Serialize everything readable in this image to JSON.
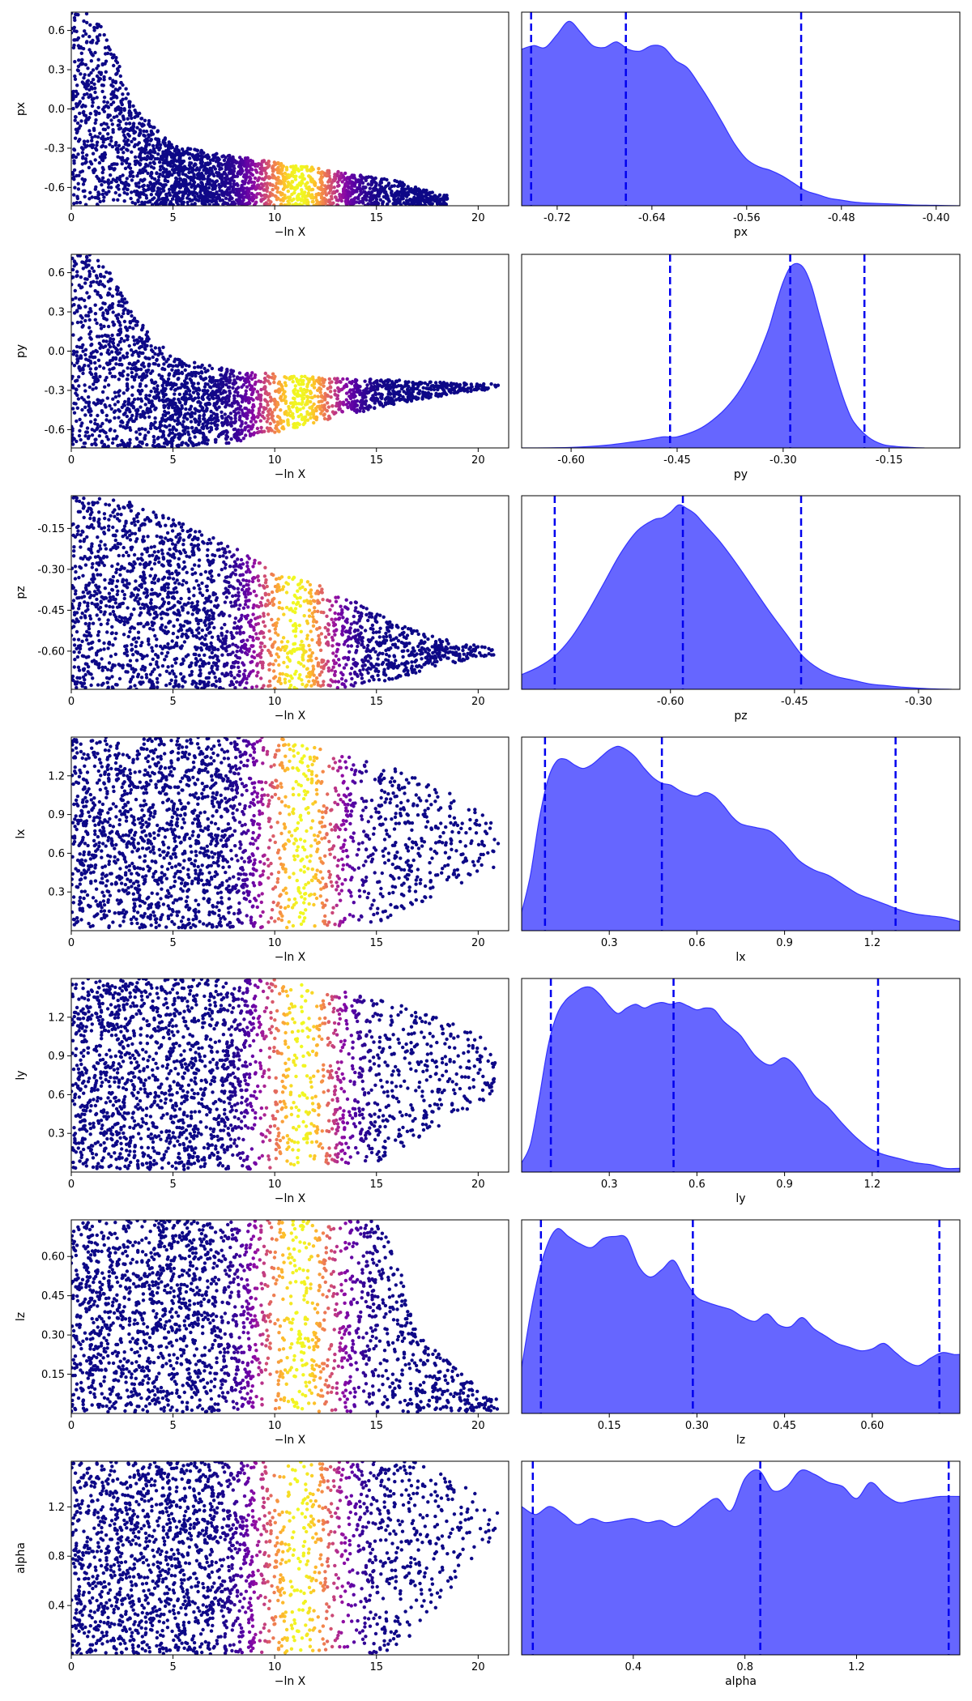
{
  "figure": {
    "xlabel_left": "−ln X",
    "colors": {
      "kde_fill": "#6666ff",
      "kde_line": "#3333ff",
      "quantile_line": "#0000ee",
      "scatter_low": "#0d0887",
      "scatter_peak": "#f0f921"
    }
  },
  "chart_data": [
    {
      "type": "scatter",
      "param": "px",
      "ylabel": "px",
      "xlabel": "−ln X",
      "xlim": [
        0,
        21.5
      ],
      "ylim": [
        -0.74,
        0.74
      ],
      "xticks": [
        "0",
        "5",
        "10",
        "15",
        "20"
      ],
      "yticks": [
        "-0.6",
        "-0.3",
        "0.0",
        "0.3",
        "0.6"
      ],
      "yticks_values": [
        -0.6,
        -0.3,
        0.0,
        0.3,
        0.6
      ],
      "spread_x": [
        0,
        1,
        2,
        3,
        5,
        8,
        12,
        16,
        18
      ],
      "upper": [
        0.74,
        0.74,
        0.5,
        0.05,
        -0.28,
        -0.36,
        -0.45,
        -0.55,
        -0.65
      ],
      "lower": [
        -0.74,
        -0.74,
        -0.74,
        -0.74,
        -0.74,
        -0.74,
        -0.74,
        -0.74,
        -0.74
      ],
      "xmax": 18.5,
      "peak_x": 11.2,
      "peak_sigma": 1.4,
      "density": 1.0
    },
    {
      "type": "area",
      "param": "px",
      "xlabel": "px",
      "xlim": [
        -0.75,
        -0.38
      ],
      "xticks": [
        "-0.72",
        "-0.64",
        "-0.56",
        "-0.48",
        "-0.40"
      ],
      "xticks_values": [
        -0.72,
        -0.64,
        -0.56,
        -0.48,
        -0.4
      ],
      "x": [
        -0.75,
        -0.74,
        -0.73,
        -0.72,
        -0.71,
        -0.7,
        -0.69,
        -0.68,
        -0.67,
        -0.66,
        -0.65,
        -0.64,
        -0.63,
        -0.62,
        -0.61,
        -0.6,
        -0.59,
        -0.58,
        -0.57,
        -0.56,
        -0.55,
        -0.54,
        -0.53,
        -0.52,
        -0.51,
        -0.5,
        -0.49,
        -0.48,
        -0.47,
        -0.46,
        -0.44,
        -0.42,
        -0.4,
        -0.38
      ],
      "y": [
        0.84,
        0.86,
        0.85,
        0.92,
        0.99,
        0.93,
        0.86,
        0.85,
        0.88,
        0.84,
        0.83,
        0.86,
        0.85,
        0.78,
        0.74,
        0.65,
        0.55,
        0.44,
        0.33,
        0.25,
        0.21,
        0.19,
        0.16,
        0.12,
        0.08,
        0.06,
        0.04,
        0.03,
        0.02,
        0.015,
        0.01,
        0.004,
        0.002,
        0.0
      ],
      "quantiles": [
        -0.742,
        -0.662,
        -0.514
      ]
    },
    {
      "type": "scatter",
      "param": "py",
      "ylabel": "py",
      "xlabel": "−ln X",
      "xlim": [
        0,
        21.5
      ],
      "ylim": [
        -0.74,
        0.74
      ],
      "xticks": [
        "0",
        "5",
        "10",
        "15",
        "20"
      ],
      "yticks": [
        "-0.6",
        "-0.3",
        "0.0",
        "0.3",
        "0.6"
      ],
      "yticks_values": [
        -0.6,
        -0.3,
        0.0,
        0.3,
        0.6
      ],
      "spread_x": [
        0,
        1,
        2,
        3,
        5,
        8,
        12,
        16,
        20
      ],
      "upper": [
        0.74,
        0.74,
        0.6,
        0.3,
        -0.05,
        -0.15,
        -0.2,
        -0.22,
        -0.25
      ],
      "lower": [
        -0.74,
        -0.74,
        -0.74,
        -0.74,
        -0.74,
        -0.7,
        -0.55,
        -0.4,
        -0.3
      ],
      "xmax": 21.0,
      "peak_x": 11.2,
      "peak_sigma": 1.4,
      "density": 1.0
    },
    {
      "type": "area",
      "param": "py",
      "xlabel": "py",
      "xlim": [
        -0.67,
        -0.05
      ],
      "xticks": [
        "-0.60",
        "-0.45",
        "-0.30",
        "-0.15"
      ],
      "xticks_values": [
        -0.6,
        -0.45,
        -0.3,
        -0.15
      ],
      "x": [
        -0.67,
        -0.6,
        -0.55,
        -0.5,
        -0.47,
        -0.45,
        -0.42,
        -0.4,
        -0.38,
        -0.36,
        -0.34,
        -0.33,
        -0.32,
        -0.31,
        -0.3,
        -0.29,
        -0.28,
        -0.27,
        -0.26,
        -0.25,
        -0.24,
        -0.23,
        -0.22,
        -0.21,
        -0.2,
        -0.18,
        -0.16,
        -0.14,
        -0.12,
        -0.1
      ],
      "y": [
        0.0,
        0.003,
        0.015,
        0.04,
        0.06,
        0.06,
        0.1,
        0.15,
        0.22,
        0.32,
        0.46,
        0.55,
        0.65,
        0.78,
        0.9,
        0.98,
        1.0,
        0.97,
        0.88,
        0.74,
        0.6,
        0.46,
        0.33,
        0.22,
        0.14,
        0.06,
        0.02,
        0.008,
        0.003,
        0.0
      ],
      "quantiles": [
        -0.46,
        -0.29,
        -0.185
      ]
    },
    {
      "type": "scatter",
      "param": "pz",
      "ylabel": "pz",
      "xlabel": "−ln X",
      "xlim": [
        0,
        21.5
      ],
      "ylim": [
        -0.74,
        -0.03
      ],
      "xticks": [
        "0",
        "5",
        "10",
        "15",
        "20"
      ],
      "yticks": [
        "-0.60",
        "-0.45",
        "-0.30",
        "-0.15"
      ],
      "yticks_values": [
        -0.6,
        -0.45,
        -0.3,
        -0.15
      ],
      "spread_x": [
        0,
        2,
        4,
        6,
        8,
        10,
        12,
        14,
        16,
        18,
        20
      ],
      "upper": [
        -0.03,
        -0.03,
        -0.08,
        -0.15,
        -0.22,
        -0.3,
        -0.35,
        -0.42,
        -0.5,
        -0.55,
        -0.58
      ],
      "lower": [
        -0.74,
        -0.74,
        -0.74,
        -0.74,
        -0.74,
        -0.74,
        -0.74,
        -0.73,
        -0.7,
        -0.66,
        -0.62
      ],
      "xmax": 20.8,
      "peak_x": 11.0,
      "peak_sigma": 1.3,
      "density": 1.0
    },
    {
      "type": "area",
      "param": "pz",
      "xlabel": "pz",
      "xlim": [
        -0.78,
        -0.25
      ],
      "xticks": [
        "-0.60",
        "-0.45",
        "-0.30"
      ],
      "xticks_values": [
        -0.6,
        -0.45,
        -0.3
      ],
      "x": [
        -0.78,
        -0.76,
        -0.74,
        -0.72,
        -0.7,
        -0.68,
        -0.66,
        -0.64,
        -0.62,
        -0.61,
        -0.6,
        -0.59,
        -0.58,
        -0.57,
        -0.56,
        -0.54,
        -0.52,
        -0.5,
        -0.48,
        -0.46,
        -0.44,
        -0.42,
        -0.4,
        -0.38,
        -0.36,
        -0.34,
        -0.32,
        -0.3,
        -0.28,
        -0.26
      ],
      "y": [
        0.08,
        0.12,
        0.18,
        0.28,
        0.42,
        0.58,
        0.74,
        0.86,
        0.92,
        0.93,
        0.96,
        1.0,
        0.98,
        0.95,
        0.9,
        0.8,
        0.68,
        0.55,
        0.42,
        0.3,
        0.18,
        0.11,
        0.07,
        0.05,
        0.03,
        0.02,
        0.012,
        0.006,
        0.002,
        0.0
      ],
      "quantiles": [
        -0.74,
        -0.585,
        -0.442
      ]
    },
    {
      "type": "scatter",
      "param": "lx",
      "ylabel": "lx",
      "xlabel": "−ln X",
      "xlim": [
        0,
        21.5
      ],
      "ylim": [
        0,
        1.5
      ],
      "xticks": [
        "0",
        "5",
        "10",
        "15",
        "20"
      ],
      "yticks": [
        "0.3",
        "0.6",
        "0.9",
        "1.2"
      ],
      "yticks_values": [
        0.3,
        0.6,
        0.9,
        1.2
      ],
      "spread_x": [
        0,
        5,
        10,
        15,
        17,
        19,
        21
      ],
      "upper": [
        1.5,
        1.5,
        1.5,
        1.3,
        1.2,
        1.05,
        0.8
      ],
      "lower": [
        0.02,
        0.02,
        0.02,
        0.05,
        0.2,
        0.35,
        0.5
      ],
      "xmax": 21.0,
      "peak_x": 11.3,
      "peak_sigma": 1.3,
      "density": 1.0
    },
    {
      "type": "area",
      "param": "lx",
      "xlabel": "lx",
      "xlim": [
        0,
        1.5
      ],
      "xticks": [
        "0.3",
        "0.6",
        "0.9",
        "1.2"
      ],
      "xticks_values": [
        0.3,
        0.6,
        0.9,
        1.2
      ],
      "x": [
        0.0,
        0.03,
        0.06,
        0.09,
        0.12,
        0.15,
        0.18,
        0.21,
        0.24,
        0.27,
        0.3,
        0.33,
        0.36,
        0.39,
        0.42,
        0.45,
        0.48,
        0.51,
        0.54,
        0.57,
        0.6,
        0.63,
        0.66,
        0.69,
        0.72,
        0.75,
        0.8,
        0.85,
        0.9,
        0.95,
        1.0,
        1.05,
        1.1,
        1.15,
        1.2,
        1.25,
        1.3,
        1.35,
        1.4,
        1.45,
        1.5
      ],
      "y": [
        0.1,
        0.3,
        0.6,
        0.82,
        0.92,
        0.93,
        0.9,
        0.88,
        0.9,
        0.94,
        0.98,
        1.0,
        0.98,
        0.94,
        0.88,
        0.83,
        0.8,
        0.79,
        0.76,
        0.74,
        0.73,
        0.75,
        0.73,
        0.68,
        0.62,
        0.58,
        0.56,
        0.54,
        0.47,
        0.38,
        0.33,
        0.3,
        0.25,
        0.2,
        0.17,
        0.14,
        0.11,
        0.09,
        0.08,
        0.07,
        0.05
      ],
      "quantiles": [
        0.08,
        0.48,
        1.28
      ]
    },
    {
      "type": "scatter",
      "param": "ly",
      "ylabel": "ly",
      "xlabel": "−ln X",
      "xlim": [
        0,
        21.5
      ],
      "ylim": [
        0,
        1.5
      ],
      "xticks": [
        "0",
        "5",
        "10",
        "15",
        "20"
      ],
      "yticks": [
        "0.3",
        "0.6",
        "0.9",
        "1.2"
      ],
      "yticks_values": [
        0.3,
        0.6,
        0.9,
        1.2
      ],
      "spread_x": [
        0,
        5,
        10,
        15,
        17,
        19,
        21
      ],
      "upper": [
        1.5,
        1.5,
        1.5,
        1.35,
        1.25,
        1.15,
        1.0
      ],
      "lower": [
        0.02,
        0.02,
        0.02,
        0.08,
        0.25,
        0.45,
        0.6
      ],
      "xmax": 21.0,
      "peak_x": 11.3,
      "peak_sigma": 1.3,
      "density": 1.0
    },
    {
      "type": "area",
      "param": "ly",
      "xlabel": "ly",
      "xlim": [
        0,
        1.5
      ],
      "xticks": [
        "0.3",
        "0.6",
        "0.9",
        "1.2"
      ],
      "xticks_values": [
        0.3,
        0.6,
        0.9,
        1.2
      ],
      "x": [
        0.0,
        0.03,
        0.06,
        0.09,
        0.12,
        0.15,
        0.18,
        0.21,
        0.24,
        0.27,
        0.3,
        0.33,
        0.36,
        0.39,
        0.42,
        0.45,
        0.48,
        0.51,
        0.54,
        0.57,
        0.6,
        0.63,
        0.66,
        0.69,
        0.72,
        0.75,
        0.8,
        0.85,
        0.9,
        0.95,
        1.0,
        1.05,
        1.1,
        1.15,
        1.2,
        1.25,
        1.3,
        1.35,
        1.4,
        1.45,
        1.5
      ],
      "y": [
        0.05,
        0.15,
        0.4,
        0.68,
        0.85,
        0.93,
        0.97,
        1.0,
        1.0,
        0.96,
        0.9,
        0.86,
        0.89,
        0.91,
        0.89,
        0.91,
        0.92,
        0.91,
        0.92,
        0.9,
        0.88,
        0.89,
        0.88,
        0.82,
        0.78,
        0.74,
        0.63,
        0.58,
        0.62,
        0.55,
        0.42,
        0.35,
        0.26,
        0.18,
        0.12,
        0.09,
        0.07,
        0.05,
        0.04,
        0.02,
        0.02
      ],
      "quantiles": [
        0.1,
        0.52,
        1.22
      ]
    },
    {
      "type": "scatter",
      "param": "lz",
      "ylabel": "lz",
      "xlabel": "−ln X",
      "xlim": [
        0,
        21.5
      ],
      "ylim": [
        0,
        0.74
      ],
      "xticks": [
        "0",
        "5",
        "10",
        "15",
        "20"
      ],
      "yticks": [
        "0.15",
        "0.30",
        "0.45",
        "0.60"
      ],
      "yticks_values": [
        0.15,
        0.3,
        0.45,
        0.6
      ],
      "spread_x": [
        0,
        5,
        10,
        15,
        16,
        17,
        20,
        21
      ],
      "upper": [
        0.74,
        0.74,
        0.74,
        0.74,
        0.6,
        0.3,
        0.1,
        0.05
      ],
      "lower": [
        0.005,
        0.005,
        0.005,
        0.005,
        0.005,
        0.005,
        0.005,
        0.005
      ],
      "xmax": 21.0,
      "peak_x": 11.2,
      "peak_sigma": 1.4,
      "density": 1.0
    },
    {
      "type": "area",
      "param": "lz",
      "xlabel": "lz",
      "xlim": [
        0,
        0.75
      ],
      "xticks": [
        "0.15",
        "0.30",
        "0.45",
        "0.60"
      ],
      "xticks_values": [
        0.15,
        0.3,
        0.45,
        0.6
      ],
      "x": [
        0.0,
        0.02,
        0.04,
        0.06,
        0.08,
        0.1,
        0.12,
        0.14,
        0.16,
        0.18,
        0.2,
        0.22,
        0.24,
        0.26,
        0.28,
        0.3,
        0.32,
        0.34,
        0.36,
        0.38,
        0.4,
        0.42,
        0.44,
        0.46,
        0.48,
        0.5,
        0.52,
        0.54,
        0.56,
        0.58,
        0.6,
        0.62,
        0.64,
        0.66,
        0.68,
        0.7,
        0.72,
        0.74,
        0.75
      ],
      "y": [
        0.25,
        0.62,
        0.88,
        1.0,
        0.96,
        0.92,
        0.9,
        0.95,
        0.96,
        0.95,
        0.8,
        0.74,
        0.78,
        0.83,
        0.72,
        0.63,
        0.6,
        0.58,
        0.56,
        0.52,
        0.5,
        0.54,
        0.48,
        0.47,
        0.52,
        0.46,
        0.42,
        0.38,
        0.36,
        0.34,
        0.35,
        0.38,
        0.33,
        0.28,
        0.26,
        0.3,
        0.33,
        0.32,
        0.32
      ],
      "quantiles": [
        0.033,
        0.293,
        0.715
      ]
    },
    {
      "type": "scatter",
      "param": "alpha",
      "ylabel": "alpha",
      "xlabel": "−ln X",
      "xlim": [
        0,
        21.5
      ],
      "ylim": [
        0,
        1.57
      ],
      "xticks": [
        "0",
        "5",
        "10",
        "15",
        "20"
      ],
      "yticks": [
        "0.4",
        "0.8",
        "1.2"
      ],
      "yticks_values": [
        0.4,
        0.8,
        1.2
      ],
      "spread_x": [
        0,
        5,
        10,
        15,
        16,
        17,
        19,
        21
      ],
      "upper": [
        1.57,
        1.57,
        1.57,
        1.57,
        1.57,
        1.57,
        1.4,
        1.2
      ],
      "lower": [
        0.005,
        0.005,
        0.005,
        0.005,
        0.05,
        0.2,
        0.6,
        0.9
      ],
      "xmax": 21.0,
      "peak_x": 11.2,
      "peak_sigma": 1.4,
      "density": 1.0
    },
    {
      "type": "area",
      "param": "alpha",
      "xlabel": "alpha",
      "xlim": [
        0,
        1.57
      ],
      "xticks": [
        "0.4",
        "0.8",
        "1.2"
      ],
      "xticks_values": [
        0.4,
        0.8,
        1.2
      ],
      "x": [
        0.0,
        0.05,
        0.1,
        0.15,
        0.2,
        0.25,
        0.3,
        0.35,
        0.4,
        0.45,
        0.5,
        0.55,
        0.6,
        0.65,
        0.7,
        0.75,
        0.8,
        0.85,
        0.9,
        0.95,
        1.0,
        1.05,
        1.1,
        1.15,
        1.2,
        1.25,
        1.3,
        1.35,
        1.4,
        1.45,
        1.5,
        1.57
      ],
      "y": [
        0.74,
        0.7,
        0.74,
        0.7,
        0.65,
        0.68,
        0.66,
        0.67,
        0.68,
        0.66,
        0.67,
        0.64,
        0.68,
        0.74,
        0.78,
        0.72,
        0.88,
        0.92,
        0.82,
        0.84,
        0.92,
        0.9,
        0.86,
        0.84,
        0.78,
        0.86,
        0.8,
        0.76,
        0.77,
        0.78,
        0.79,
        0.79
      ],
      "quantiles": [
        0.04,
        0.855,
        1.53
      ]
    }
  ]
}
